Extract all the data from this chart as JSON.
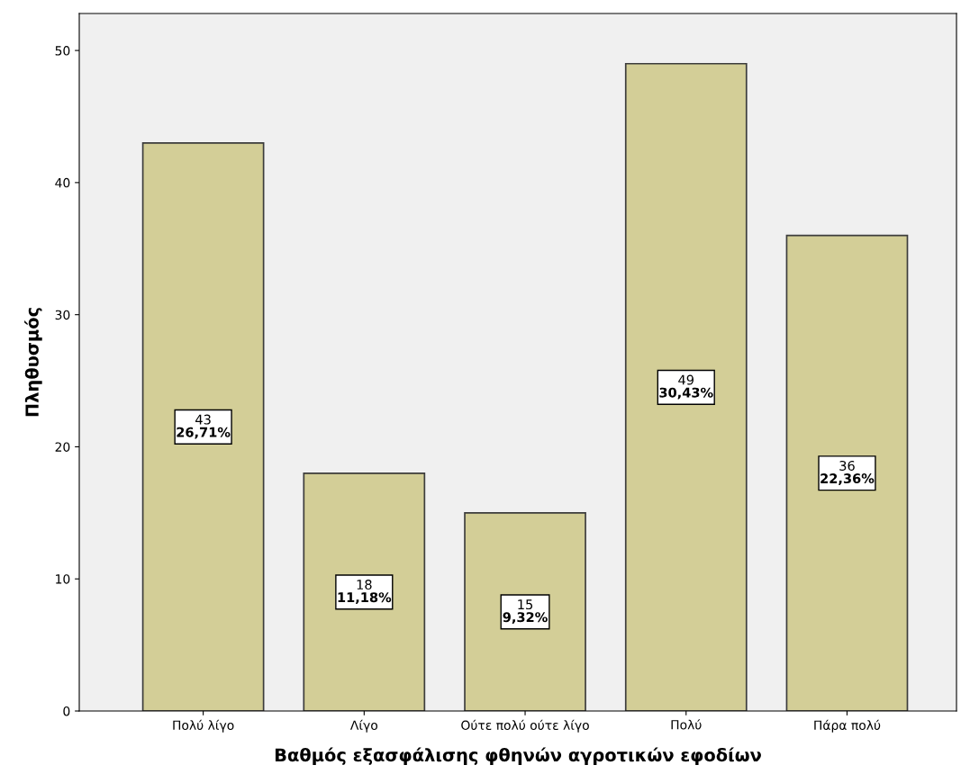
{
  "chart_data": {
    "type": "bar",
    "xlabel": "Βαθμός εξασφάλισης φθηνών αγροτικών εφοδίων",
    "ylabel": "Πληθυσμός",
    "categories": [
      "Πολύ λίγο",
      "Λίγο",
      "Ούτε πολύ ούτε λίγο",
      "Πολύ",
      "Πάρα πολύ"
    ],
    "values": [
      43,
      18,
      15,
      49,
      36
    ],
    "value_labels": [
      "43\n26,71%",
      "18\n11,18%",
      "15\n9,32%",
      "49\n30,43%",
      "36\n22,36%"
    ],
    "color": "#d3ce97",
    "ylim": [
      0,
      52.8
    ],
    "yticks": [
      0,
      10,
      20,
      30,
      40,
      50
    ],
    "grid": false,
    "legend": false
  }
}
